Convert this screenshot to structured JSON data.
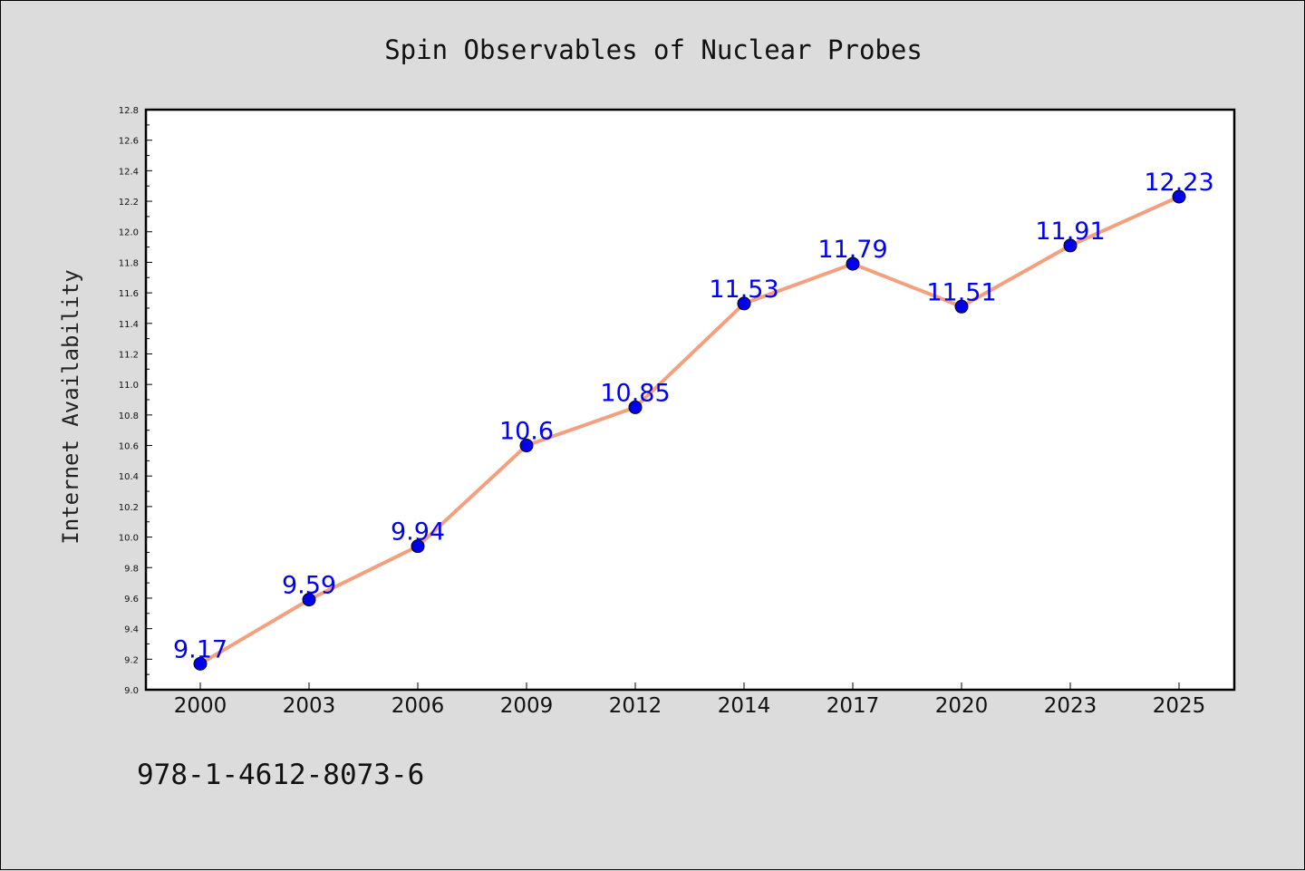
{
  "chart_data": {
    "type": "line",
    "title": "Spin Observables of Nuclear Probes",
    "xlabel": "",
    "ylabel": "Internet Availability",
    "categories": [
      "2000",
      "2003",
      "2006",
      "2009",
      "2012",
      "2014",
      "2017",
      "2020",
      "2023",
      "2025"
    ],
    "series": [
      {
        "values": [
          9.17,
          9.59,
          9.94,
          10.6,
          10.85,
          11.53,
          11.79,
          11.51,
          11.91,
          12.23
        ],
        "labels": [
          "9.17",
          "9.59",
          "9.94",
          "10.6",
          "10.85",
          "11.53",
          "11.79",
          "11.51",
          "11.91",
          "12.23"
        ],
        "line_color": "#f4a07e",
        "marker_color": "#0000ee",
        "label_color": "#0000ee"
      }
    ],
    "ylim": [
      9.0,
      12.8
    ],
    "yticks": [
      "9.0",
      "9.2",
      "9.4",
      "9.6",
      "9.8",
      "10.0",
      "10.2",
      "10.4",
      "10.6",
      "10.8",
      "11.0",
      "11.2",
      "11.4",
      "11.6",
      "11.8",
      "12.0",
      "12.2",
      "12.4",
      "12.6",
      "12.8"
    ],
    "grid": false,
    "legend": "none"
  },
  "footer": {
    "isbn": "978-1-4612-8073-6"
  }
}
